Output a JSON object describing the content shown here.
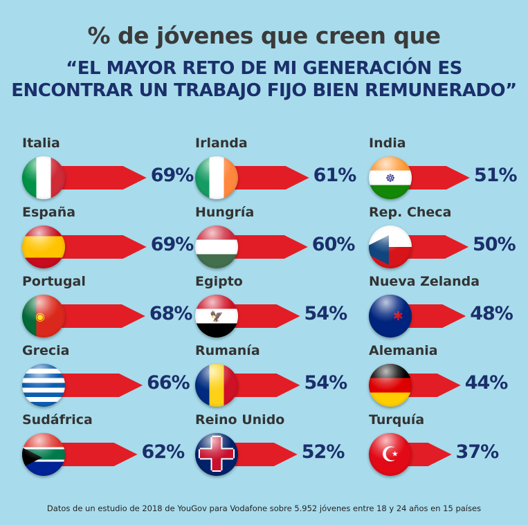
{
  "title": "% de jóvenes que creen que",
  "subtitle_line1": "“EL MAYOR RETO DE MI GENERACIÓN ES",
  "subtitle_line2": "ENCONTRAR UN TRABAJO FIJO BIEN REMUNERADO”",
  "footnote": "Datos de un estudio de 2018 de YouGov para Vodafone sobre 5.952 jóvenes entre 18 y 24 años en 15 países",
  "colors": {
    "arrow": "#e31d25",
    "value_text": "#1b2f6b",
    "background": "#a8dcec"
  },
  "chart_data": {
    "type": "bar",
    "unit": "%",
    "columns": [
      [
        {
          "country": "Italia",
          "value": 69,
          "flag": {
            "dir": "to right",
            "colors": [
              "#009246",
              "#ffffff",
              "#ce2b37"
            ]
          }
        },
        {
          "country": "España",
          "value": 69,
          "flag": {
            "dir": "to bottom",
            "colors": [
              "#c60b1e",
              "#ffc400",
              "#ffc400",
              "#c60b1e"
            ]
          }
        },
        {
          "country": "Portugal",
          "value": 68,
          "flag": {
            "dir": "to right",
            "colors": [
              "#046a38",
              "#da291c",
              "#da291c"
            ],
            "symbol": "◉"
          }
        },
        {
          "country": "Grecia",
          "value": 66,
          "flag": {
            "dir": "to bottom",
            "colors": [
              "#0d5eaf",
              "#ffffff",
              "#0d5eaf",
              "#ffffff",
              "#0d5eaf",
              "#ffffff",
              "#0d5eaf",
              "#ffffff",
              "#0d5eaf"
            ]
          }
        },
        {
          "country": "Sudáfrica",
          "value": 62,
          "flag": {
            "dir": "to bottom",
            "colors": [
              "#de3831",
              "#ffffff",
              "#007a4d",
              "#ffffff",
              "#002395"
            ],
            "symbol": "▶"
          }
        }
      ],
      [
        {
          "country": "Irlanda",
          "value": 61,
          "flag": {
            "dir": "to right",
            "colors": [
              "#169b62",
              "#ffffff",
              "#ff883e"
            ]
          }
        },
        {
          "country": "Hungría",
          "value": 60,
          "flag": {
            "dir": "to bottom",
            "colors": [
              "#cd2a3e",
              "#ffffff",
              "#436f4d"
            ]
          }
        },
        {
          "country": "Egipto",
          "value": 54,
          "flag": {
            "dir": "to bottom",
            "colors": [
              "#ce1126",
              "#ffffff",
              "#000000"
            ],
            "symbol": "🦅"
          }
        },
        {
          "country": "Rumanía",
          "value": 54,
          "flag": {
            "dir": "to right",
            "colors": [
              "#002b7f",
              "#fcd116",
              "#ce1126"
            ]
          }
        },
        {
          "country": "Reino Unido",
          "value": 52,
          "flag": {
            "dir": "to right",
            "colors": [
              "#012169",
              "#012169"
            ],
            "symbol": "✚"
          }
        }
      ],
      [
        {
          "country": "India",
          "value": 51,
          "flag": {
            "dir": "to bottom",
            "colors": [
              "#ff9933",
              "#ffffff",
              "#138808"
            ],
            "symbol": "☸"
          }
        },
        {
          "country": "Rep. Checa",
          "value": 50,
          "flag": {
            "dir": "to bottom",
            "colors": [
              "#ffffff",
              "#d7141a"
            ],
            "symbol": "◀"
          }
        },
        {
          "country": "Nueva Zelanda",
          "value": 48,
          "flag": {
            "dir": "to right",
            "colors": [
              "#00247d",
              "#00247d"
            ],
            "symbol": "✱"
          }
        },
        {
          "country": "Alemania",
          "value": 44,
          "flag": {
            "dir": "to bottom",
            "colors": [
              "#000000",
              "#dd0000",
              "#ffce00"
            ]
          }
        },
        {
          "country": "Turquía",
          "value": 37,
          "flag": {
            "dir": "to right",
            "colors": [
              "#e30a17",
              "#e30a17"
            ],
            "symbol": "☪"
          }
        }
      ]
    ]
  }
}
